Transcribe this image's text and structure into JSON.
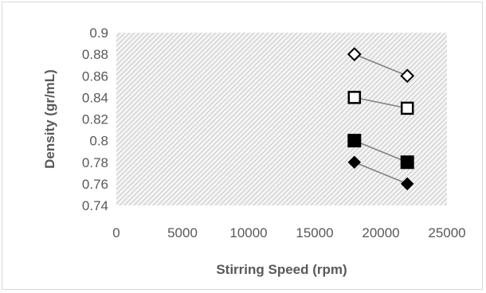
{
  "chart_data": {
    "type": "scatter",
    "title": "",
    "xlabel": "Stirring Speed (rpm)",
    "ylabel": "Density (gr/mL)",
    "xlim": [
      0,
      25000
    ],
    "ylim": [
      0.74,
      0.9
    ],
    "x_ticks": [
      "0",
      "5000",
      "10000",
      "15000",
      "20000",
      "25000"
    ],
    "y_ticks": [
      "0.74",
      "0.76",
      "0.78",
      "0.8",
      "0.82",
      "0.84",
      "0.86",
      "0.88",
      "0.9"
    ],
    "grid": false,
    "plot_area_fill": "hatched light gray",
    "series": [
      {
        "marker": "open-diamond",
        "x": [
          18000,
          22000
        ],
        "y": [
          0.88,
          0.86
        ]
      },
      {
        "marker": "open-square",
        "x": [
          18000,
          22000
        ],
        "y": [
          0.84,
          0.83
        ]
      },
      {
        "marker": "filled-square",
        "x": [
          18000,
          22000
        ],
        "y": [
          0.8,
          0.78
        ]
      },
      {
        "marker": "filled-diamond",
        "x": [
          18000,
          22000
        ],
        "y": [
          0.78,
          0.76
        ]
      }
    ],
    "colors": {
      "marker": "#000000",
      "line": "#7f7f7f",
      "text": "#595959"
    }
  }
}
